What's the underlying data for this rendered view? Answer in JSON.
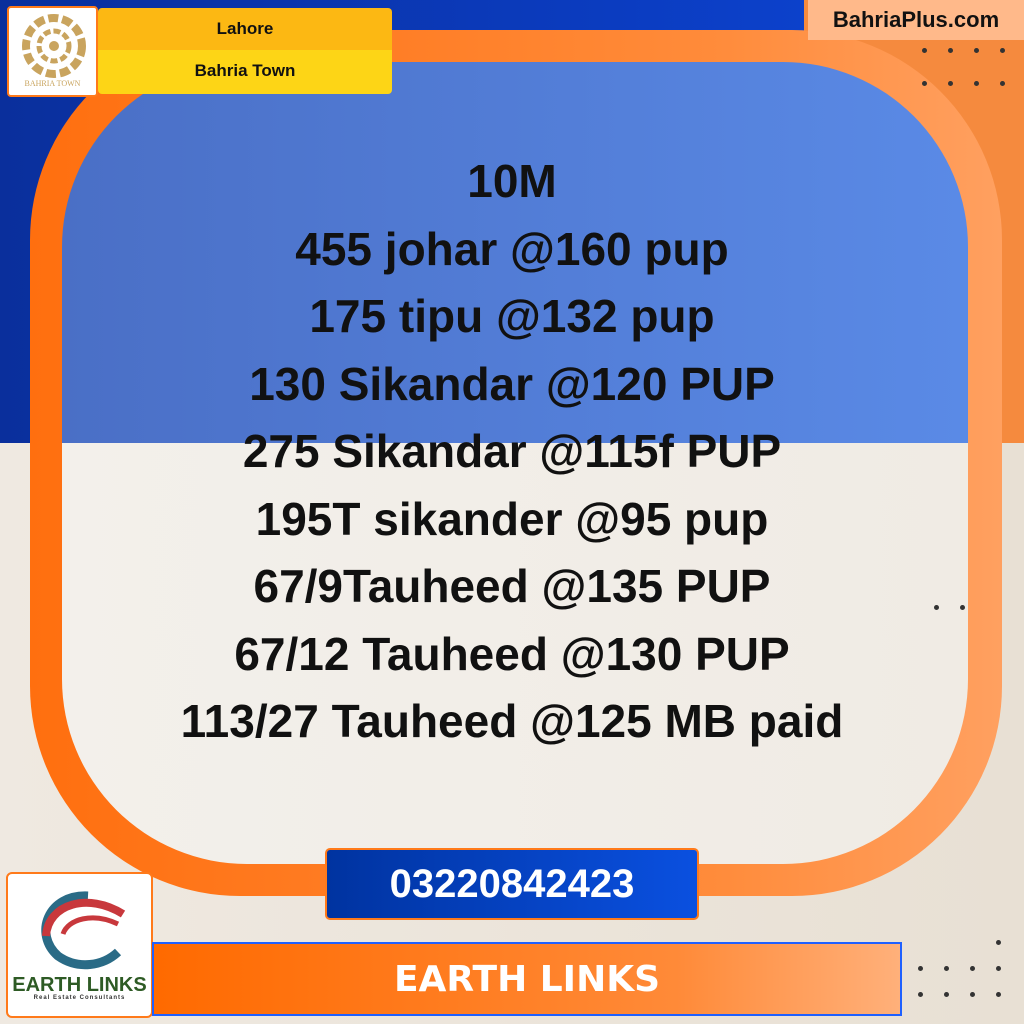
{
  "header": {
    "city": "Lahore",
    "project": "Bahria Town",
    "site": "BahriaPlus.com"
  },
  "logos": {
    "bahria_town": "BAHRIA TOWN",
    "earth_links": "EARTH LINKS",
    "earth_links_tagline": "Real Estate Consultants"
  },
  "listing": {
    "lines": [
      "10M",
      "455 johar @160 pup",
      "175 tipu @132 pup",
      "130 Sikandar @120 PUP",
      "275 Sikandar @115f PUP",
      "195T sikander @95 pup",
      "67/9Tauheed @135 PUP",
      "67/12 Tauheed @130 PUP",
      "113/27 Tauheed @125 MB paid"
    ]
  },
  "contact": {
    "phone": "03220842423",
    "agency": "EARTH LINKS"
  },
  "colors": {
    "orange": "#ff7a1a",
    "blue": "#0b3cc0",
    "yellow": "#fcb813",
    "beige": "#f0ebe4"
  }
}
